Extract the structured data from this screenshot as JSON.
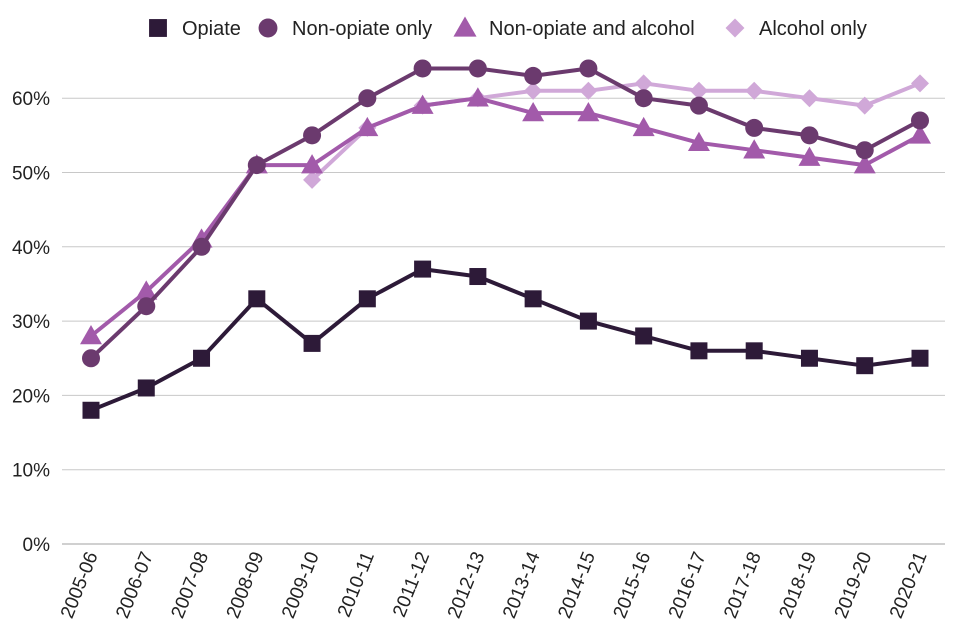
{
  "chart_data": {
    "type": "line",
    "categories": [
      "2005-06",
      "2006-07",
      "2007-08",
      "2008-09",
      "2009-10",
      "2010-11",
      "2011-12",
      "2012-13",
      "2013-14",
      "2014-15",
      "2015-16",
      "2016-17",
      "2017-18",
      "2018-19",
      "2019-20",
      "2020-21"
    ],
    "y_ticks": [
      "0%",
      "10%",
      "20%",
      "30%",
      "40%",
      "50%",
      "60%"
    ],
    "ylim": [
      0,
      67
    ],
    "y_unit": "%",
    "grid": true,
    "legend_position": "top",
    "series": [
      {
        "name": "Opiate",
        "marker": "square",
        "color": "#2d1a38",
        "values": [
          18,
          21,
          25,
          33,
          27,
          33,
          37,
          36,
          33,
          30,
          28,
          26,
          26,
          25,
          24,
          25
        ]
      },
      {
        "name": "Non-opiate only",
        "marker": "circle",
        "color": "#6b3a6e",
        "values": [
          25,
          32,
          40,
          51,
          55,
          60,
          64,
          64,
          63,
          64,
          60,
          59,
          56,
          55,
          53,
          57
        ]
      },
      {
        "name": "Non-opiate and alcohol",
        "marker": "triangle",
        "color": "#a25aaa",
        "values": [
          28,
          34,
          41,
          51,
          51,
          56,
          59,
          60,
          58,
          58,
          56,
          54,
          53,
          52,
          51,
          55
        ]
      },
      {
        "name": "Alcohol only",
        "marker": "diamond",
        "color": "#d0a8d8",
        "values": [
          null,
          null,
          null,
          null,
          49,
          56,
          59,
          60,
          61,
          61,
          62,
          61,
          61,
          60,
          59,
          62
        ]
      }
    ]
  }
}
